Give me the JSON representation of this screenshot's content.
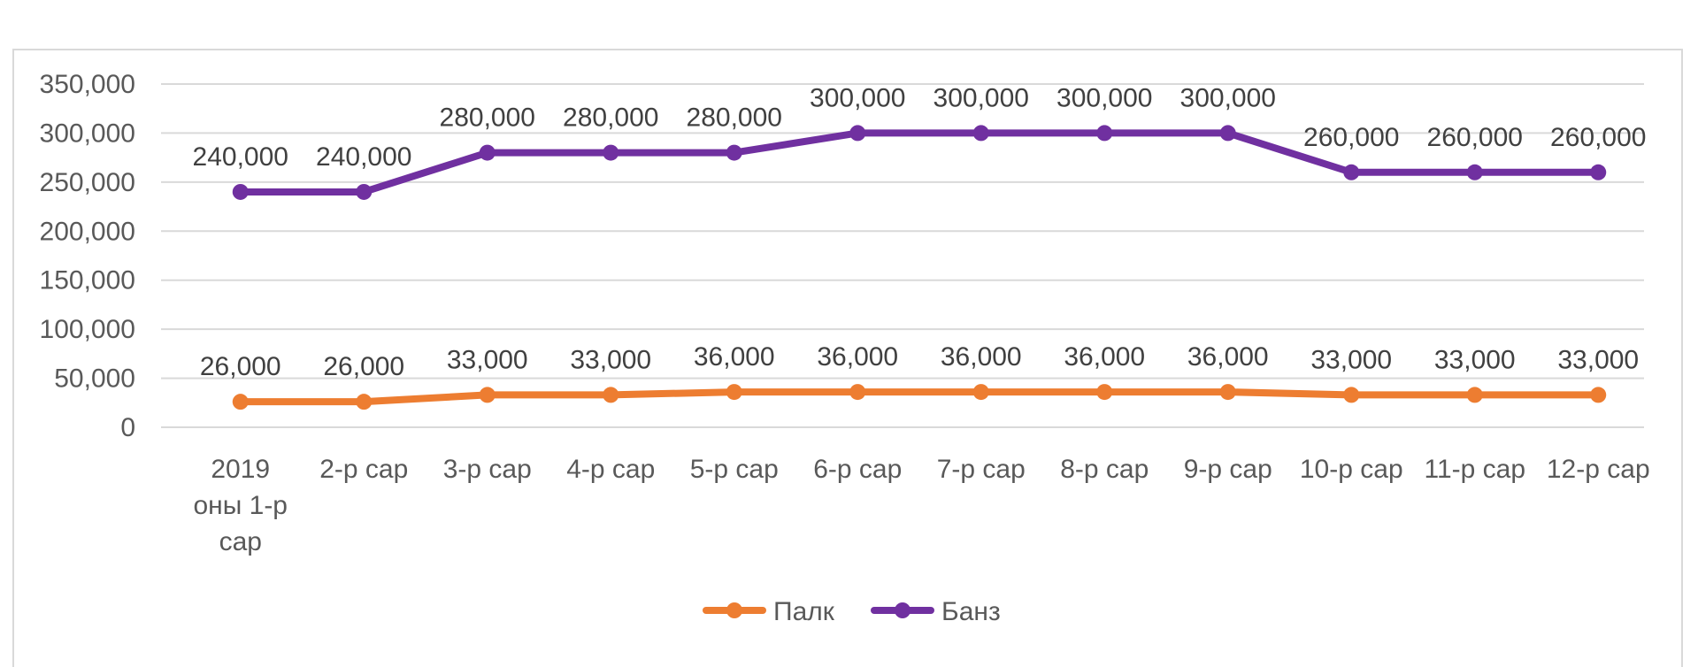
{
  "chart_data": {
    "type": "line",
    "categories": [
      [
        "2019",
        "оны 1-р",
        "сар"
      ],
      [
        "2-р сар"
      ],
      [
        "3-р сар"
      ],
      [
        "4-р сар"
      ],
      [
        "5-р сар"
      ],
      [
        "6-р сар"
      ],
      [
        "7-р сар"
      ],
      [
        "8-р сар"
      ],
      [
        "9-р сар"
      ],
      [
        "10-р сар"
      ],
      [
        "11-р сар"
      ],
      [
        "12-р сар"
      ]
    ],
    "series": [
      {
        "name": "Палк",
        "color": "#ed7d31",
        "values": [
          26000,
          26000,
          33000,
          33000,
          36000,
          36000,
          36000,
          36000,
          36000,
          33000,
          33000,
          33000
        ],
        "labels": [
          "26,000",
          "26,000",
          "33,000",
          "33,000",
          "36,000",
          "36,000",
          "36,000",
          "36,000",
          "36,000",
          "33,000",
          "33,000",
          "33,000"
        ]
      },
      {
        "name": "Банз",
        "color": "#7030a0",
        "values": [
          240000,
          240000,
          280000,
          280000,
          280000,
          300000,
          300000,
          300000,
          300000,
          260000,
          260000,
          260000
        ],
        "labels": [
          "240,000",
          "240,000",
          "280,000",
          "280,000",
          "280,000",
          "300,000",
          "300,000",
          "300,000",
          "300,000",
          "260,000",
          "260,000",
          "260,000"
        ]
      }
    ],
    "yticks": [
      0,
      50000,
      100000,
      150000,
      200000,
      250000,
      300000,
      350000
    ],
    "ytick_labels": [
      "0",
      "50,000",
      "100,000",
      "150,000",
      "200,000",
      "250,000",
      "300,000",
      "350,000"
    ],
    "ylim": [
      0,
      350000
    ],
    "grid": true,
    "legend_position": "bottom"
  }
}
